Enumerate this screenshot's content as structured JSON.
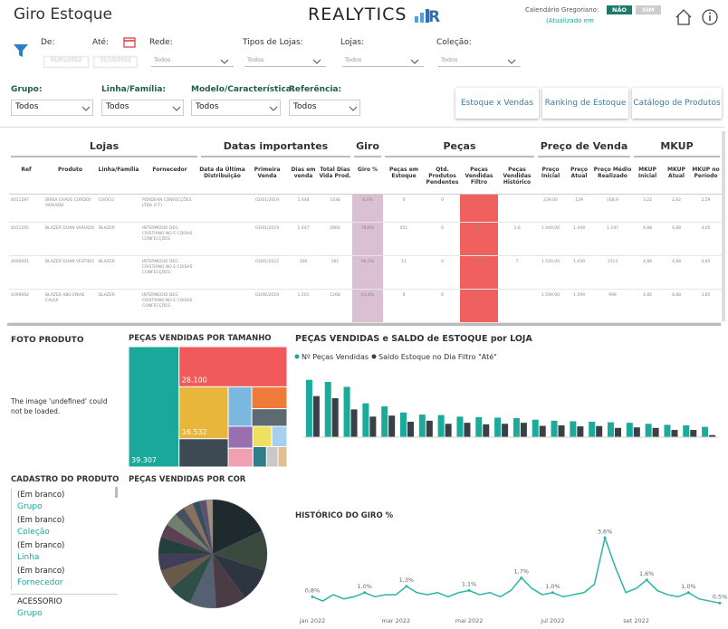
{
  "header": {
    "title": "Giro Estoque",
    "logo": "REALYTICS",
    "calendar_label": "Calendário Gregoriano:",
    "toggle_no": "NÃO",
    "toggle_yes": "SIM",
    "updated": "(Atualizado em"
  },
  "filters": [
    {
      "label": "De:",
      "value": "01/01/2022"
    },
    {
      "label": "Até:",
      "value": "31/10/2022"
    },
    {
      "label": "Rede:",
      "value": "Todos"
    },
    {
      "label": "Tipos de Lojas:",
      "value": "Todos"
    },
    {
      "label": "Lojas:",
      "value": "Todos"
    },
    {
      "label": "Coleção:",
      "value": "Todos"
    }
  ],
  "product_filters": [
    {
      "label": "Grupo:",
      "value": "Todos"
    },
    {
      "label": "Linha/Família:",
      "value": "Todos"
    },
    {
      "label": "Modelo/Característica:",
      "value": "Todos"
    },
    {
      "label": "Referência:",
      "value": "Todos"
    }
  ],
  "buttons": [
    "Estoque x Vendas",
    "Ranking de Estoque",
    "Catálogo de Produtos"
  ],
  "table": {
    "groups": [
      "Lojas",
      "Datas importantes",
      "Giro",
      "Peças",
      "Preço de Venda",
      "MKUP"
    ],
    "columns": [
      "Ref",
      "Produto",
      "Linha/Família",
      "Fornecedor",
      "Data da Última Distribuição",
      "Primeira Venda",
      "Dias em venda",
      "Total Dias Vida Prod.",
      "Giro %",
      "Peças em Estoque",
      "Qtd. Produtos Pendentes",
      "Peças Vendidas Filtro",
      "Peças Vendidas Histórico",
      "Preço Inicial",
      "Preço Atual",
      "Preço Médio Realizado",
      "MKUP Inicial",
      "MKUP Atual",
      "MKUP no Período"
    ],
    "rows": [
      [
        "4011297",
        "BIRKA CHAVE CORDOY VARIADO",
        "CHOCO",
        "PORDEAN CONFECÇÕES LTDA (CT)",
        "",
        "02/01/2019",
        "1.448",
        "1438",
        "8,0%",
        "0",
        "0",
        "1",
        "",
        "239,00",
        "129",
        "168,9",
        "3,22",
        "2,82",
        "2,59"
      ],
      [
        "4011295",
        "BLAZER DUAN VARIADO",
        "BLAZER",
        "INTERMEDIO DEG CRISTIANO NO E COISAS CONFECÇÕES",
        "",
        "03/01/2019",
        "1.447",
        "2666",
        "78,6%",
        "451",
        "0",
        "161",
        "2,6",
        "1.449,00",
        "1.449",
        "1.197",
        "4,88",
        "4,88",
        "4,05"
      ],
      [
        "4000001",
        "BLAZER DUAN VESTIDO",
        "BLAZER",
        "INTERMEDIO DEG CRISTIANO NO E COISAS CONFECÇÕES",
        "",
        "03/01/2022",
        "306",
        "361",
        "96,2%",
        "11",
        "0",
        "279",
        "7",
        "1.520,00",
        "1.439",
        "1513",
        "4,88",
        "4,88",
        "4,95"
      ],
      [
        "4399092",
        "BLAZER ABU ENVIE CAQUI",
        "BLAZER",
        "INTERMEDIO DEG CRISTIANO NO E COISAS CONFECÇÕES",
        "",
        "03/06/2019",
        "1.201",
        "1268",
        "63,8%",
        "0",
        "0",
        "39",
        "",
        "1.599,00",
        "1.599",
        "999",
        "4,85",
        "4,88",
        "3,85"
      ]
    ]
  },
  "photo": {
    "title": "FOTO PRODUTO",
    "message": "The image 'undefined' could not be loaded."
  },
  "treemap": {
    "type": "treemap",
    "title": "PEÇAS VENDIDAS POR TAMANHO",
    "values": [
      39307,
      28100,
      16532,
      9000,
      6000,
      5000,
      4000,
      3500,
      3000,
      2500,
      2000,
      1800,
      1500,
      1200
    ],
    "value_labels": [
      "39.307",
      "28.100",
      "16.532",
      null,
      null,
      null,
      null,
      null,
      null,
      null,
      null,
      null,
      null,
      null
    ],
    "colors": [
      "#1aa89a",
      "#f05a5a",
      "#e8b63a",
      "#3d4a54",
      "#7ab8e0",
      "#f07a3a",
      "#5e6a72",
      "#9a6fb0",
      "#f0a0b0",
      "#f0e060",
      "#a6d0ee",
      "#2f7d8a",
      "#c8c8c8",
      "#e0c090"
    ]
  },
  "bar_chart": {
    "type": "bar",
    "title": "PEÇAS VENDIDAS e SALDO de ESTOQUE por LOJA",
    "categories": [
      null,
      null,
      null,
      null,
      null,
      null,
      null,
      null,
      null,
      null,
      null,
      null,
      null,
      null,
      null,
      null,
      null,
      null,
      null,
      null,
      null,
      null
    ],
    "series": [
      {
        "name": "Nº Peças Vendidas",
        "color": "#1aab9b",
        "values": [
          55848,
          53883,
          49000,
          33000,
          30000,
          24000,
          22000,
          21500,
          20000,
          19500,
          19000,
          18500,
          17000,
          16000,
          15500,
          15000,
          14500,
          14000,
          13000,
          12000,
          11500,
          10000
        ]
      },
      {
        "name": "Saldo Estoque no Dia Filtro \"Até\"",
        "color": "#3a4048",
        "values": [
          40000,
          38000,
          27000,
          20000,
          21000,
          15000,
          16000,
          13000,
          14000,
          12500,
          13000,
          14000,
          11000,
          11500,
          10500,
          10800,
          9000,
          9500,
          9000,
          7000,
          7000,
          2000
        ]
      }
    ],
    "ylim": [
      0,
      60000
    ]
  },
  "cadastro": {
    "title": "CADASTRO DO PRODUTO",
    "items": [
      {
        "value": "(Em branco)",
        "field": "Grupo"
      },
      {
        "value": "(Em branco)",
        "field": "Coleção"
      },
      {
        "value": "(Em branco)",
        "field": "Linha"
      },
      {
        "value": "(Em branco)",
        "field": "Fornecedor"
      },
      {
        "value": "ACESSORIO",
        "field": "Grupo"
      }
    ]
  },
  "pie_chart": {
    "type": "pie",
    "title": "PEÇAS VENDIDAS POR COR",
    "values": [
      18,
      12,
      10,
      9,
      8,
      7,
      6,
      5,
      5,
      4,
      4,
      3,
      3,
      2,
      2,
      2
    ],
    "colors": [
      "#1e2a2e",
      "#3a4a3e",
      "#2c3540",
      "#4a3a44",
      "#556070",
      "#2e4e48",
      "#6a5a4a",
      "#3e3e58",
      "#24403a",
      "#5a4050",
      "#708070",
      "#48505a",
      "#8a7060",
      "#305060",
      "#605070",
      "#a09080"
    ]
  },
  "line_chart": {
    "type": "line",
    "title": "HISTÓRICO DO GIRO %",
    "color": "#2ab5a5",
    "values": [
      0.8,
      0.6,
      0.9,
      0.7,
      0.8,
      1.0,
      0.8,
      0.9,
      0.9,
      1.3,
      1.0,
      0.9,
      1.0,
      0.8,
      1.0,
      1.1,
      0.9,
      1.0,
      0.8,
      1.1,
      1.7,
      1.2,
      0.9,
      1.0,
      0.8,
      0.9,
      1.0,
      1.4,
      3.6,
      2.2,
      1.0,
      1.2,
      1.6,
      1.1,
      0.9,
      0.8,
      1.0,
      0.7,
      0.6,
      0.5
    ],
    "value_labels": [
      "0,8%",
      null,
      null,
      null,
      null,
      "1,0%",
      null,
      null,
      null,
      "1,3%",
      null,
      null,
      null,
      null,
      null,
      "1,1%",
      null,
      null,
      null,
      null,
      "1,7%",
      null,
      null,
      "1,0%",
      null,
      null,
      null,
      null,
      "3,6%",
      null,
      null,
      null,
      "1,6%",
      null,
      null,
      null,
      "1,0%",
      null,
      null,
      "0,5%"
    ],
    "ylim": [
      0,
      4
    ],
    "xticks": [
      {
        "value": 0,
        "label": "jan 2022"
      },
      {
        "value": 8,
        "label": "mar 2022"
      },
      {
        "value": 15,
        "label": "mai 2022"
      },
      {
        "value": 23,
        "label": "jul 2022"
      },
      {
        "value": 31,
        "label": "set 2022"
      }
    ]
  }
}
